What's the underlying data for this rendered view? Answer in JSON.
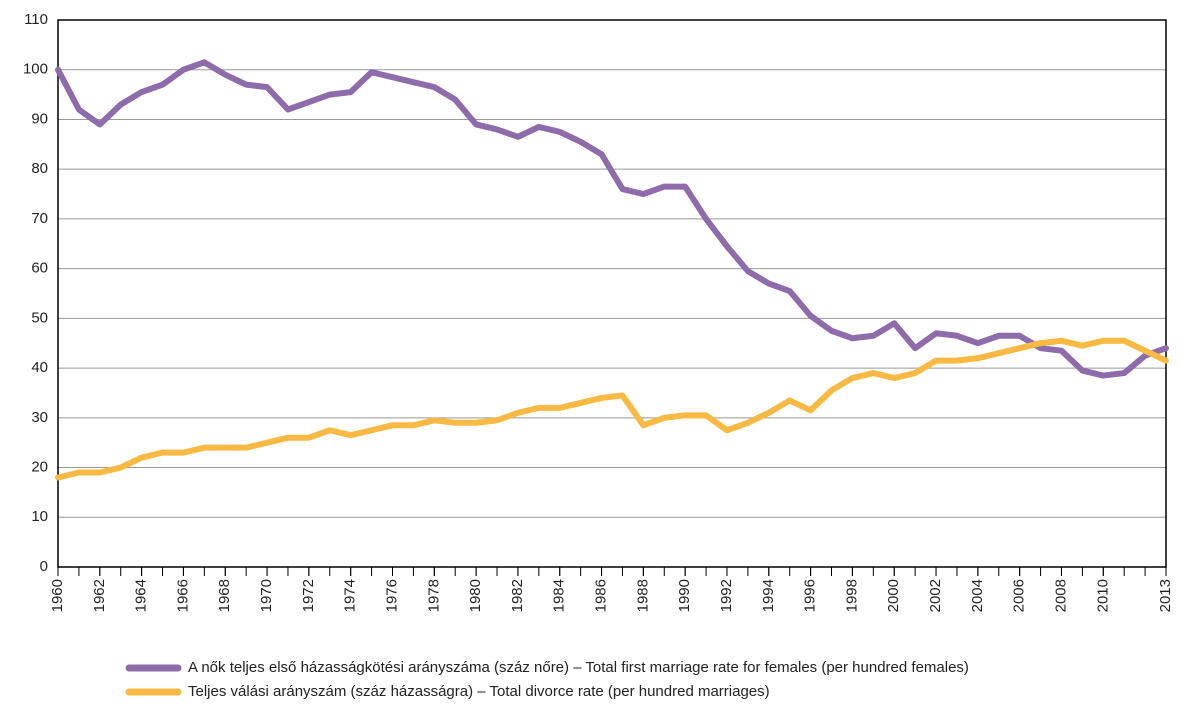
{
  "chart_data": {
    "type": "line",
    "x": [
      1960,
      1961,
      1962,
      1963,
      1964,
      1965,
      1966,
      1967,
      1968,
      1969,
      1970,
      1971,
      1972,
      1973,
      1974,
      1975,
      1976,
      1977,
      1978,
      1979,
      1980,
      1981,
      1982,
      1983,
      1984,
      1985,
      1986,
      1987,
      1988,
      1989,
      1990,
      1991,
      1992,
      1993,
      1994,
      1995,
      1996,
      1997,
      1998,
      1999,
      2000,
      2001,
      2002,
      2003,
      2004,
      2005,
      2006,
      2007,
      2008,
      2009,
      2010,
      2011,
      2012,
      2013
    ],
    "series": [
      {
        "name": "A nők teljes első házasságkötési arányszáma (száz nőre) – Total first marriage rate for females (per hundred females)",
        "color": "#8e6bab",
        "values": [
          100,
          92,
          89,
          93,
          95.5,
          97,
          100,
          101.5,
          99,
          97,
          96.5,
          92,
          93.5,
          95,
          95.5,
          99.5,
          98.5,
          97.5,
          96.5,
          94,
          89,
          88,
          86.5,
          88.5,
          87.5,
          85.5,
          83,
          76,
          75,
          76.5,
          76.5,
          70,
          64.5,
          59.5,
          57,
          55.5,
          50.5,
          47.5,
          46,
          46.5,
          49,
          44,
          47,
          46.5,
          45,
          46.5,
          46.5,
          44,
          43.5,
          39.5,
          38.5,
          39,
          42.5,
          44
        ]
      },
      {
        "name": "Teljes válási arányszám (száz házasságra) – Total divorce rate (per hundred marriages)",
        "color": "#f9b942",
        "values": [
          18,
          19,
          19,
          20,
          22,
          23,
          23,
          24,
          24,
          24,
          25,
          26,
          26,
          27.5,
          26.5,
          27.5,
          28.5,
          28.5,
          29.5,
          29,
          29,
          29.5,
          31,
          32,
          32,
          33,
          34,
          34.5,
          28.5,
          30,
          30.5,
          30.5,
          27.5,
          29,
          31,
          33.5,
          31.5,
          35.5,
          38,
          39,
          38,
          39,
          41.5,
          41.5,
          42,
          43,
          44,
          45,
          45.5,
          44.5,
          45.5,
          45.5,
          43.5,
          41.5
        ]
      }
    ],
    "xlim": [
      1960,
      2013
    ],
    "xticks": [
      1960,
      1962,
      1964,
      1966,
      1968,
      1970,
      1972,
      1974,
      1976,
      1978,
      1980,
      1982,
      1984,
      1986,
      1988,
      1990,
      1992,
      1994,
      1996,
      1998,
      2000,
      2002,
      2004,
      2006,
      2008,
      2010,
      2013
    ],
    "ylim": [
      0,
      110
    ],
    "yticks": [
      0,
      10,
      20,
      30,
      40,
      50,
      60,
      70,
      80,
      90,
      100,
      110
    ],
    "grid": true
  }
}
